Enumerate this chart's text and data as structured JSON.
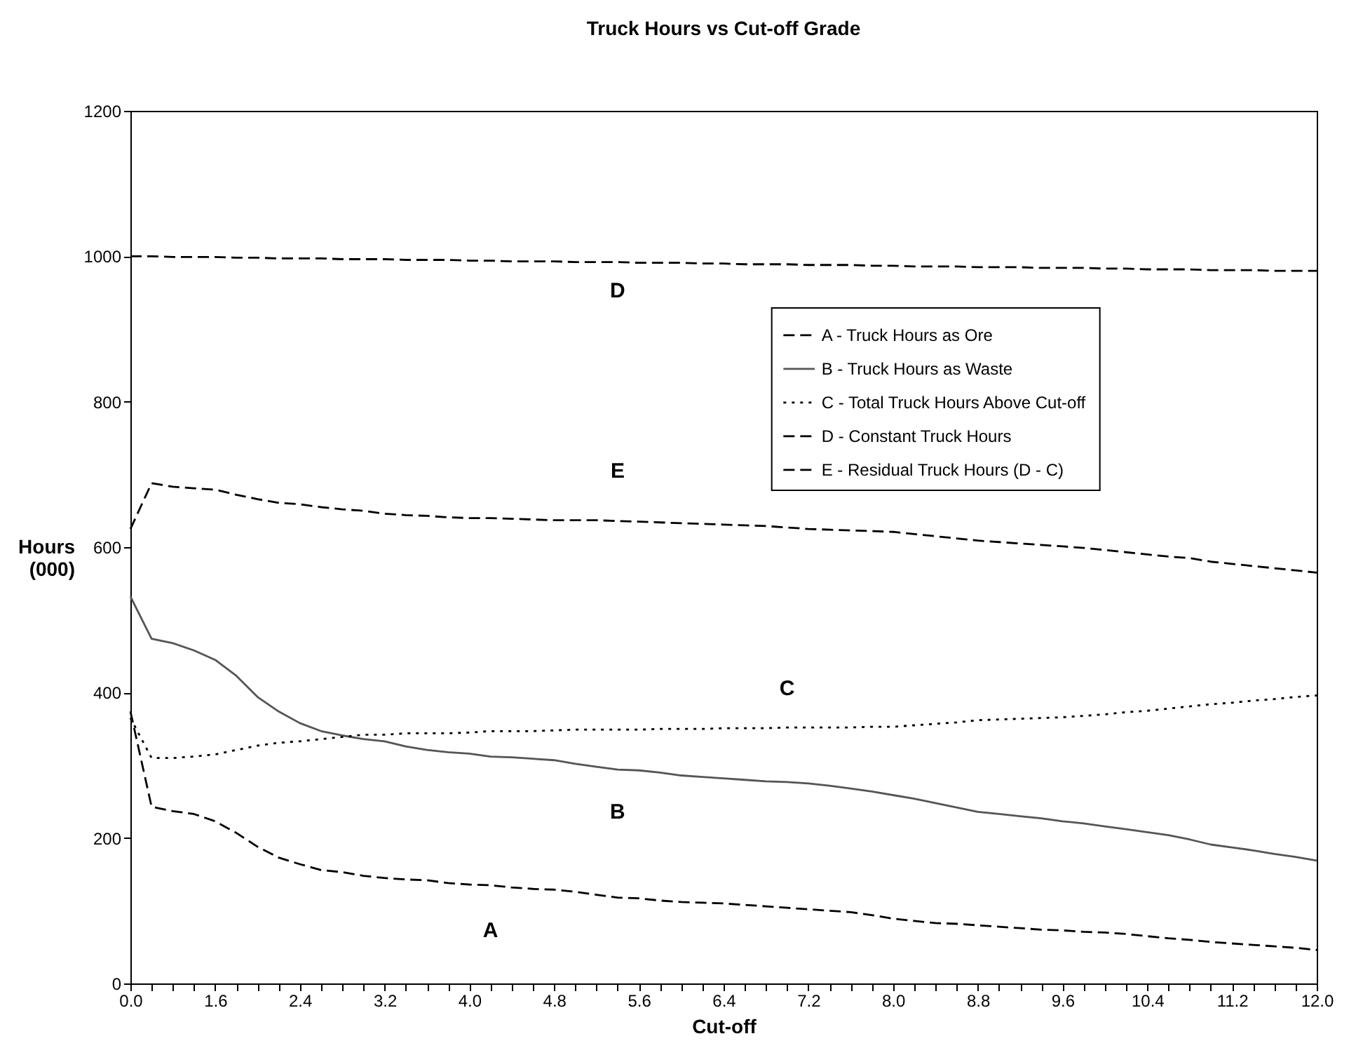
{
  "chart_data": {
    "type": "line",
    "title": "Truck Hours vs Cut-off Grade",
    "xlabel": "Cut-off",
    "ylabel": "Hours (000)",
    "categories": [
      "0.0",
      null,
      null,
      null,
      "1.6",
      null,
      null,
      null,
      "2.4",
      null,
      null,
      null,
      "3.2",
      null,
      null,
      null,
      "4.0",
      null,
      null,
      null,
      "4.8",
      null,
      null,
      null,
      "5.6",
      null,
      null,
      null,
      "6.4",
      null,
      null,
      null,
      "7.2",
      null,
      null,
      null,
      "8.0",
      null,
      null,
      null,
      "8.8",
      null,
      null,
      null,
      "9.6",
      null,
      null,
      null,
      "10.4",
      null,
      null,
      null,
      "11.2",
      null,
      null,
      null,
      "12.0"
    ],
    "series": [
      {
        "name": "A - Truck Hours as Ore",
        "color": "#000000",
        "line_style": "dashed",
        "values": [
          374,
          243,
          237,
          233,
          223,
          207,
          188,
          173,
          164,
          156,
          153,
          148,
          145,
          143,
          142,
          138,
          136,
          135,
          132,
          130,
          129,
          126,
          122,
          118,
          117,
          114,
          112,
          111,
          110,
          108,
          106,
          104,
          102,
          100,
          98,
          94,
          89,
          86,
          83,
          82,
          80,
          78,
          76,
          74,
          73,
          71,
          70,
          68,
          65,
          62,
          60,
          57,
          55,
          53,
          51,
          49,
          46
        ]
      },
      {
        "name": "B - Truck Hours as Waste",
        "color": "#555555",
        "line_style": "solid",
        "values": [
          532,
          474,
          468,
          458,
          445,
          423,
          394,
          374,
          358,
          347,
          341,
          336,
          333,
          326,
          321,
          318,
          316,
          312,
          311,
          309,
          307,
          302,
          298,
          294,
          293,
          290,
          286,
          284,
          282,
          280,
          278,
          277,
          275,
          272,
          268,
          264,
          259,
          254,
          248,
          242,
          236,
          233,
          230,
          227,
          223,
          220,
          216,
          212,
          208,
          204,
          198,
          191,
          187,
          183,
          178,
          174,
          169
        ]
      },
      {
        "name": "C - Total Truck Hours Above Cut-off",
        "color": "#000000",
        "line_style": "dotted",
        "values": [
          365,
          310,
          310,
          312,
          315,
          321,
          327,
          331,
          333,
          336,
          339,
          342,
          342,
          344,
          344,
          344,
          345,
          347,
          347,
          347,
          348,
          349,
          349,
          349,
          349,
          350,
          350,
          350,
          351,
          351,
          351,
          352,
          352,
          352,
          352,
          353,
          353,
          355,
          357,
          359,
          362,
          363,
          364,
          365,
          366,
          368,
          370,
          373,
          375,
          378,
          381,
          384,
          386,
          389,
          391,
          394,
          396
        ]
      },
      {
        "name": "D - Constant Truck Hours",
        "color": "#000000",
        "line_style": "dashed",
        "values": [
          1000,
          1000,
          999,
          999,
          999,
          998,
          998,
          997,
          997,
          997,
          996,
          996,
          996,
          995,
          995,
          995,
          994,
          994,
          993,
          993,
          993,
          992,
          992,
          992,
          991,
          991,
          991,
          990,
          990,
          989,
          989,
          989,
          988,
          988,
          988,
          987,
          987,
          986,
          986,
          986,
          985,
          985,
          985,
          984,
          984,
          984,
          983,
          983,
          982,
          982,
          982,
          981,
          981,
          981,
          980,
          980,
          980
        ]
      },
      {
        "name": "E - Residual Truck Hours (D - C)",
        "color": "#000000",
        "line_style": "dashed",
        "values": [
          625,
          688,
          683,
          681,
          679,
          672,
          666,
          661,
          659,
          655,
          652,
          650,
          646,
          644,
          643,
          641,
          640,
          640,
          639,
          638,
          637,
          637,
          637,
          636,
          635,
          634,
          633,
          632,
          631,
          630,
          629,
          627,
          625,
          624,
          623,
          622,
          621,
          618,
          615,
          612,
          609,
          607,
          605,
          603,
          601,
          599,
          596,
          593,
          590,
          587,
          585,
          580,
          577,
          574,
          571,
          568,
          565
        ]
      }
    ],
    "annotations": [
      "A",
      "B",
      "C",
      "D",
      "E"
    ],
    "ylim": [
      0,
      1200
    ],
    "yticks": [
      0,
      200,
      400,
      600,
      800,
      1000,
      1200
    ],
    "grid": false,
    "legend": "top right"
  }
}
